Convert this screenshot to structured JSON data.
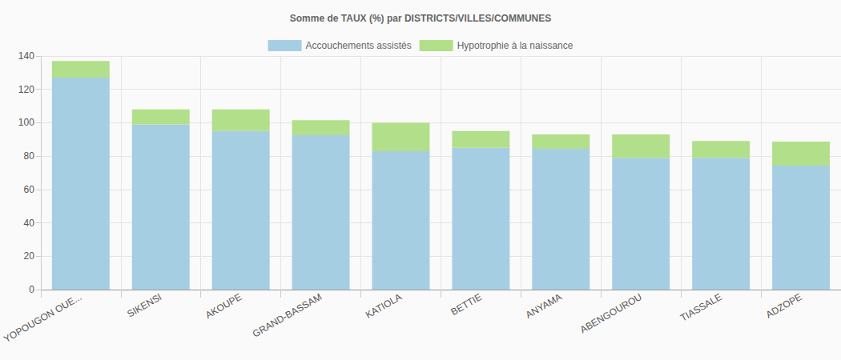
{
  "chart_data": {
    "type": "bar",
    "title": "Somme de TAUX (%) par DISTRICTS/VILLES/COMMUNES",
    "categories": [
      "YOPOUGON OUE...",
      "SIKENSI",
      "AKOUPE",
      "GRAND-BASSAM",
      "KATIOLA",
      "BETTIE",
      "ANYAMA",
      "ABENGOUROU",
      "TIASSALE",
      "ADZOPE"
    ],
    "series": [
      {
        "name": "Accouchements assistés",
        "color": "#a6cee3",
        "values": [
          127,
          99,
          95,
          92.5,
          83,
          85,
          84.4,
          79,
          79,
          74.3
        ]
      },
      {
        "name": "Hypotrophie à la naissance",
        "color": "#b2df8a",
        "values": [
          10,
          9,
          13,
          9,
          17,
          10,
          8.6,
          14,
          10,
          14.4
        ]
      }
    ],
    "stacked": true,
    "legend": "top",
    "grid": true,
    "ylim": [
      0,
      140
    ],
    "yticks": [
      0,
      20,
      40,
      60,
      80,
      100,
      120,
      140
    ]
  }
}
